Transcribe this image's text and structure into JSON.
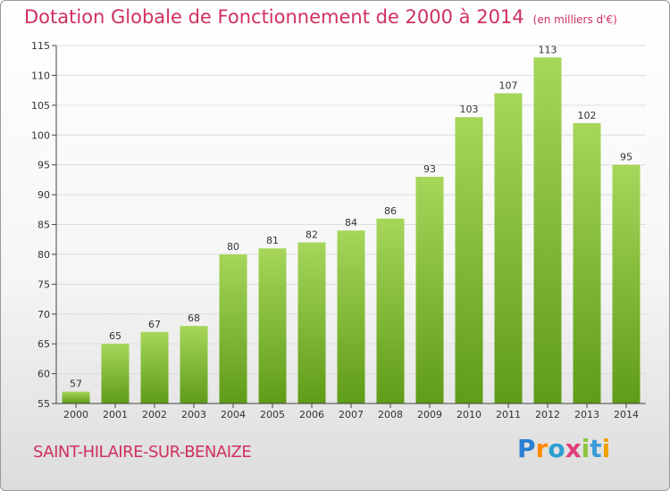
{
  "header": {
    "title": "Dotation Globale de Fonctionnement de 2000 à 2014",
    "subtitle": "(en milliers d'€)"
  },
  "footer": {
    "commune": "SAINT-HILAIRE-SUR-BENAIZE",
    "logo_letters": [
      "P",
      "r",
      "o",
      "x",
      "i",
      "t",
      "i"
    ]
  },
  "colors": {
    "title": "#d0305e",
    "bar_light": "#a6d65a",
    "bar_dark": "#5f9c18",
    "grid": "#dddddd"
  },
  "chart_data": {
    "type": "bar",
    "title": "Dotation Globale de Fonctionnement de 2000 à 2014",
    "subtitle": "(en milliers d'€)",
    "categories": [
      "2000",
      "2001",
      "2002",
      "2003",
      "2004",
      "2005",
      "2006",
      "2007",
      "2008",
      "2009",
      "2010",
      "2011",
      "2012",
      "2013",
      "2014"
    ],
    "values": [
      57,
      65,
      67,
      68,
      80,
      81,
      82,
      84,
      86,
      93,
      103,
      107,
      113,
      102,
      95
    ],
    "xlabel": "",
    "ylabel": "",
    "ylim": [
      55,
      115
    ],
    "yticks": [
      55,
      60,
      65,
      70,
      75,
      80,
      85,
      90,
      95,
      100,
      105,
      110,
      115
    ],
    "grid": true,
    "data_labels": true
  }
}
